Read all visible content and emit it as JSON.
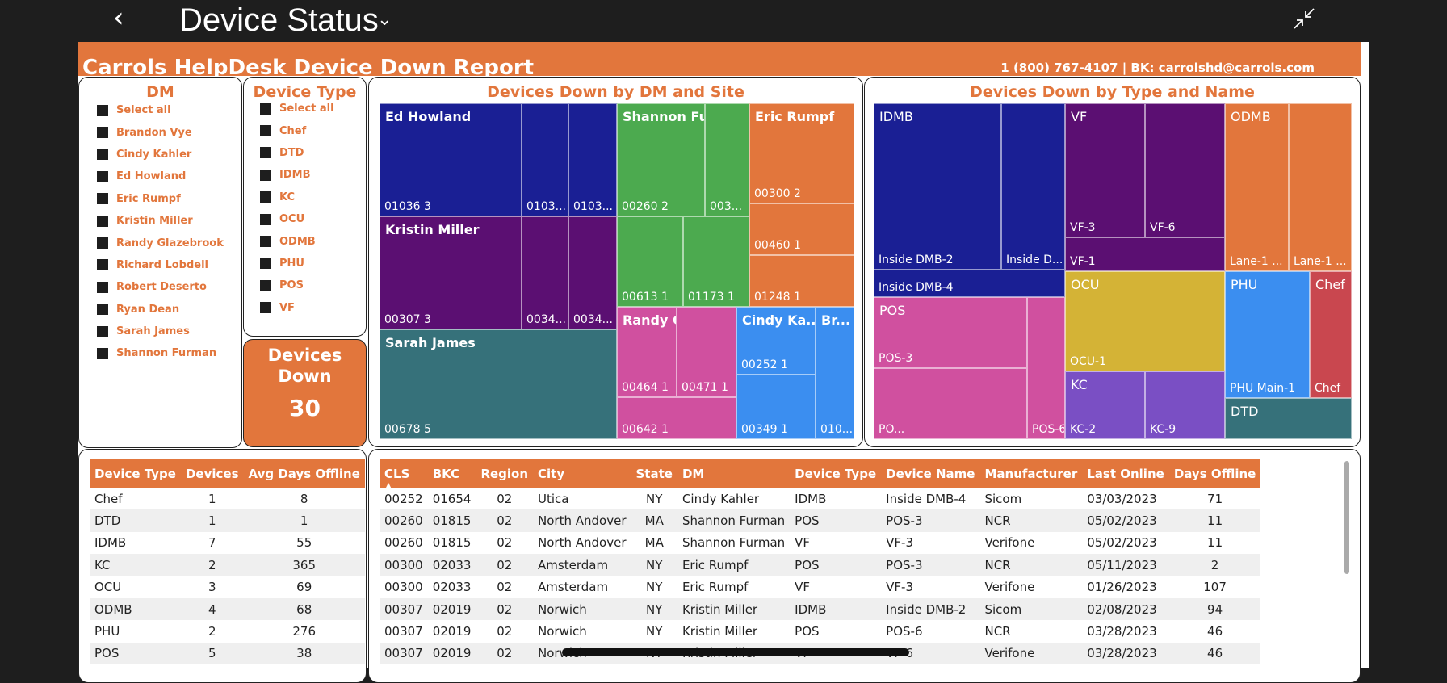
{
  "app": {
    "title": "Device Status"
  },
  "banner": {
    "title": "Carrols HelpDesk Device Down Report",
    "contact": "1 (800) 767-4107 | BK: carrolshd@carrols.com"
  },
  "dm_slicer": {
    "title": "DM",
    "items": [
      "Select all",
      "Brandon Vye",
      "Cindy Kahler",
      "Ed Howland",
      "Eric Rumpf",
      "Kristin Miller",
      "Randy Glazebrook",
      "Richard Lobdell",
      "Robert Deserto",
      "Ryan Dean",
      "Sarah James",
      "Shannon Furman"
    ]
  },
  "type_slicer": {
    "title": "Device Type",
    "items": [
      "Select all",
      "Chef",
      "DTD",
      "IDMB",
      "KC",
      "OCU",
      "ODMB",
      "PHU",
      "POS",
      "VF"
    ]
  },
  "kpi": {
    "label": "Devices Down",
    "value": "30"
  },
  "treemap_dm": {
    "title": "Devices Down by DM and Site",
    "tiles": [
      {
        "group": "Ed Howland",
        "label": "01036 3",
        "color": "#1a1f94"
      },
      {
        "label": "0103...",
        "color": "#1a1f94"
      },
      {
        "label": "0103...",
        "color": "#1a1f94"
      },
      {
        "group": "Kristin Miller",
        "label": "00307 3",
        "color": "#5b0f72"
      },
      {
        "label": "0034...",
        "color": "#5b0f72"
      },
      {
        "label": "0034...",
        "color": "#5b0f72"
      },
      {
        "group": "Sarah James",
        "label": "00678 5",
        "color": "#36717a"
      },
      {
        "group": "Shannon Furman",
        "label": "00260 2",
        "color": "#4caa4f"
      },
      {
        "label": "003...",
        "color": "#4caa4f"
      },
      {
        "label": "00613 1",
        "color": "#4caa4f"
      },
      {
        "label": "01173 1",
        "color": "#4caa4f"
      },
      {
        "group": "Eric Rumpf",
        "label": "00300 2",
        "color": "#e2763c"
      },
      {
        "label": "00460 1",
        "color": "#e2763c"
      },
      {
        "label": "01248 1",
        "color": "#e2763c"
      },
      {
        "group": "Randy Glazebro...",
        "label": "00464 1",
        "color": "#d0509f"
      },
      {
        "label": "00471 1",
        "color": "#d0509f"
      },
      {
        "label": "00642 1",
        "color": "#d0509f"
      },
      {
        "group": "Cindy Ka...",
        "label": "00252 1",
        "color": "#3b8ef0"
      },
      {
        "label": "00349 1",
        "color": "#3b8ef0"
      },
      {
        "group": "Br...",
        "label": "010...",
        "color": "#3b8ef0"
      }
    ]
  },
  "treemap_type": {
    "title": "Devices Down by Type and Name",
    "tiles": [
      {
        "group": "IDMB",
        "label": "Inside DMB-2",
        "color": "#1a1f94"
      },
      {
        "label": "Inside D...",
        "color": "#1a1f94"
      },
      {
        "label": "Inside DMB-4",
        "color": "#1a1f94"
      },
      {
        "group": "VF",
        "label": "VF-3",
        "color": "#5b0f72"
      },
      {
        "label": "VF-6",
        "color": "#5b0f72"
      },
      {
        "label": "VF-1",
        "color": "#5b0f72"
      },
      {
        "group": "ODMB",
        "label": "Lane-1 ...",
        "color": "#e2763c"
      },
      {
        "label": "Lane-1 ...",
        "color": "#e2763c"
      },
      {
        "group": "POS",
        "label": "POS-3",
        "color": "#d0509f"
      },
      {
        "label": "POS-6",
        "color": "#d0509f"
      },
      {
        "label": "PO...",
        "color": "#d0509f"
      },
      {
        "group": "OCU",
        "label": "OCU-1",
        "color": "#d4b336"
      },
      {
        "group": "KC",
        "label": "KC-2",
        "color": "#7a4fc4"
      },
      {
        "label": "KC-9",
        "color": "#7a4fc4"
      },
      {
        "group": "PHU",
        "label": "PHU Main-1",
        "color": "#3b8ef0"
      },
      {
        "group": "Chef",
        "label": "Chef",
        "color": "#c9474f"
      },
      {
        "group": "DTD",
        "label": "",
        "color": "#36717a"
      }
    ]
  },
  "summary_table": {
    "columns": [
      "Device Type",
      "Devices",
      "Avg Days Offline"
    ],
    "rows": [
      [
        "Chef",
        "1",
        "8"
      ],
      [
        "DTD",
        "1",
        "1"
      ],
      [
        "IDMB",
        "7",
        "55"
      ],
      [
        "KC",
        "2",
        "365"
      ],
      [
        "OCU",
        "3",
        "69"
      ],
      [
        "ODMB",
        "4",
        "68"
      ],
      [
        "PHU",
        "2",
        "276"
      ],
      [
        "POS",
        "5",
        "38"
      ]
    ]
  },
  "detail_table": {
    "columns": [
      "CLS",
      "BKC",
      "Region",
      "City",
      "State",
      "DM",
      "Device Type",
      "Device Name",
      "Manufacturer",
      "Last Online",
      "Days Offline"
    ],
    "rows": [
      [
        "00252",
        "01654",
        "02",
        "Utica",
        "NY",
        "Cindy Kahler",
        "IDMB",
        "Inside DMB-4",
        "Sicom",
        "03/03/2023",
        "71"
      ],
      [
        "00260",
        "01815",
        "02",
        "North Andover",
        "MA",
        "Shannon Furman",
        "POS",
        "POS-3",
        "NCR",
        "05/02/2023",
        "11"
      ],
      [
        "00260",
        "01815",
        "02",
        "North Andover",
        "MA",
        "Shannon Furman",
        "VF",
        "VF-3",
        "Verifone",
        "05/02/2023",
        "11"
      ],
      [
        "00300",
        "02033",
        "02",
        "Amsterdam",
        "NY",
        "Eric Rumpf",
        "POS",
        "POS-3",
        "NCR",
        "05/11/2023",
        "2"
      ],
      [
        "00300",
        "02033",
        "02",
        "Amsterdam",
        "NY",
        "Eric Rumpf",
        "VF",
        "VF-3",
        "Verifone",
        "01/26/2023",
        "107"
      ],
      [
        "00307",
        "02019",
        "02",
        "Norwich",
        "NY",
        "Kristin Miller",
        "IDMB",
        "Inside DMB-2",
        "Sicom",
        "02/08/2023",
        "94"
      ],
      [
        "00307",
        "02019",
        "02",
        "Norwich",
        "NY",
        "Kristin Miller",
        "POS",
        "POS-6",
        "NCR",
        "03/28/2023",
        "46"
      ],
      [
        "00307",
        "02019",
        "02",
        "Norwich",
        "NY",
        "Kristin Miller",
        "VF",
        "VF-6",
        "Verifone",
        "03/28/2023",
        "46"
      ]
    ]
  }
}
